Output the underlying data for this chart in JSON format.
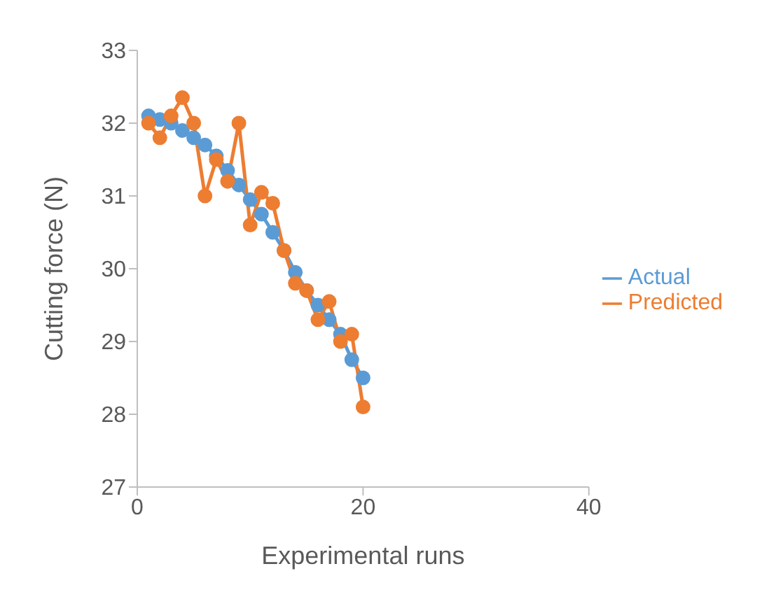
{
  "chart_data": {
    "type": "line",
    "xlabel": "Experimental runs",
    "ylabel": "Cutting force (N)",
    "x": [
      1,
      2,
      3,
      4,
      5,
      6,
      7,
      8,
      9,
      10,
      11,
      12,
      13,
      14,
      15,
      16,
      17,
      18,
      19,
      20
    ],
    "series": [
      {
        "name": "Actual",
        "color": "#5b9bd5",
        "values": [
          32.1,
          32.05,
          32.0,
          31.9,
          31.8,
          31.7,
          31.55,
          31.35,
          31.15,
          30.95,
          30.75,
          30.5,
          30.25,
          29.95,
          29.7,
          29.5,
          29.3,
          29.1,
          28.75,
          28.5
        ]
      },
      {
        "name": "Predicted",
        "color": "#ed7d31",
        "values": [
          32.0,
          31.8,
          32.1,
          32.35,
          32.0,
          31.0,
          31.5,
          31.2,
          32.0,
          30.6,
          31.05,
          30.9,
          30.25,
          29.8,
          29.7,
          29.3,
          29.55,
          29.0,
          29.1,
          28.1
        ]
      }
    ],
    "xlim": [
      0,
      40
    ],
    "xticks": [
      0,
      20,
      40
    ],
    "ylim": [
      27,
      33
    ],
    "yticks": [
      27,
      28,
      29,
      30,
      31,
      32,
      33
    ],
    "grid": false,
    "legend": "right",
    "marker": "circle",
    "line_style": "solid"
  }
}
